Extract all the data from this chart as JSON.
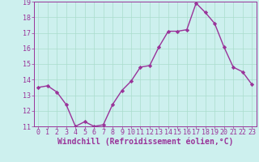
{
  "x_values": [
    0,
    1,
    2,
    3,
    4,
    5,
    6,
    7,
    8,
    9,
    10,
    11,
    12,
    13,
    14,
    15,
    16,
    17,
    18,
    19,
    20,
    21,
    22,
    23
  ],
  "y_values": [
    13.5,
    13.6,
    13.2,
    12.4,
    11.0,
    11.3,
    11.0,
    11.1,
    12.4,
    13.3,
    13.9,
    14.8,
    14.9,
    16.1,
    17.1,
    17.1,
    17.2,
    18.9,
    18.3,
    17.6,
    16.1,
    14.8,
    14.5,
    13.7
  ],
  "line_color": "#993399",
  "marker": "D",
  "marker_size": 2.2,
  "bg_color": "#cdf0ee",
  "grid_color": "#aaddcc",
  "xlabel": "Windchill (Refroidissement éolien,°C)",
  "ylabel": "",
  "ylim": [
    11,
    19
  ],
  "xlim": [
    -0.5,
    23.5
  ],
  "yticks": [
    11,
    12,
    13,
    14,
    15,
    16,
    17,
    18,
    19
  ],
  "xticks": [
    0,
    1,
    2,
    3,
    4,
    5,
    6,
    7,
    8,
    9,
    10,
    11,
    12,
    13,
    14,
    15,
    16,
    17,
    18,
    19,
    20,
    21,
    22,
    23
  ],
  "tick_color": "#993399",
  "label_color": "#993399",
  "font_size": 6.0,
  "xlabel_font_size": 7.0,
  "line_width": 1.0
}
